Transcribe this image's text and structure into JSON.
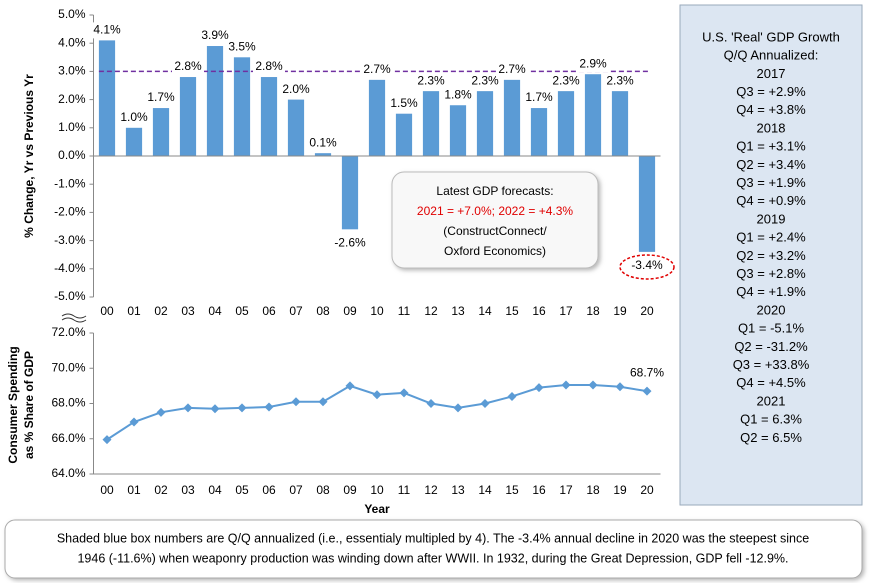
{
  "chart_data": [
    {
      "type": "bar",
      "y_label": "% Change, Yr vs Previous Yr",
      "categories": [
        "00",
        "01",
        "02",
        "03",
        "04",
        "05",
        "06",
        "07",
        "08",
        "09",
        "10",
        "11",
        "12",
        "13",
        "14",
        "15",
        "16",
        "17",
        "18",
        "19",
        "20"
      ],
      "values": [
        4.1,
        1.0,
        1.7,
        2.8,
        3.9,
        3.5,
        2.8,
        2.0,
        0.1,
        -2.6,
        2.7,
        1.5,
        2.3,
        1.8,
        2.3,
        2.7,
        1.7,
        2.3,
        2.9,
        2.3,
        -3.4
      ],
      "value_labels": [
        "4.1%",
        "1.0%",
        "1.7%",
        "2.8%",
        "3.9%",
        "3.5%",
        "2.8%",
        "2.0%",
        "0.1%",
        "-2.6%",
        "2.7%",
        "1.5%",
        "2.3%",
        "1.8%",
        "2.3%",
        "2.7%",
        "1.7%",
        "2.3%",
        "2.9%",
        "2.3%",
        "-3.4%"
      ],
      "color": "#5b9bd5",
      "reference_line": {
        "value": 3,
        "color": "#7030a0"
      },
      "ylim": [
        -5,
        5
      ],
      "yticks": [
        {
          "value": -5,
          "label": "-5.0%"
        },
        {
          "value": -4,
          "label": "-4.0%"
        },
        {
          "value": -3,
          "label": "-3.0%"
        },
        {
          "value": -2,
          "label": "-2.0%"
        },
        {
          "value": -1,
          "label": "-1.0%"
        },
        {
          "value": 0,
          "label": "0.0%"
        },
        {
          "value": 1,
          "label": "1.0%"
        },
        {
          "value": 2,
          "label": "2.0%"
        },
        {
          "value": 3,
          "label": "3.0%"
        },
        {
          "value": 4,
          "label": "4.0%"
        },
        {
          "value": 5,
          "label": "5.0%"
        }
      ],
      "annotation": [
        {
          "text": "Latest GDP forecasts:",
          "color": "#000000"
        },
        {
          "text": "2021 = +7.0%; 2022 = +4.3%",
          "color": "#e00000"
        },
        {
          "text": "(ConstructConnect/",
          "color": "#000000"
        },
        {
          "text": "Oxford Economics)",
          "color": "#000000"
        }
      ]
    },
    {
      "type": "line",
      "y_label": [
        "Consumer Spending",
        "as % Share of GDP"
      ],
      "x_label": "Year",
      "categories": [
        "00",
        "01",
        "02",
        "03",
        "04",
        "05",
        "06",
        "07",
        "08",
        "09",
        "10",
        "11",
        "12",
        "13",
        "14",
        "15",
        "16",
        "17",
        "18",
        "19",
        "20"
      ],
      "values": [
        65.95,
        66.95,
        67.5,
        67.75,
        67.7,
        67.75,
        67.8,
        68.1,
        68.1,
        69.0,
        68.5,
        68.6,
        68.0,
        67.75,
        68.0,
        68.4,
        68.9,
        69.05,
        69.05,
        68.95,
        68.7
      ],
      "value_labels": [
        null,
        null,
        null,
        null,
        null,
        null,
        null,
        null,
        null,
        null,
        null,
        null,
        null,
        null,
        null,
        null,
        null,
        null,
        null,
        null,
        "68.7%"
      ],
      "color": "#5b9bd5",
      "ylim": [
        64,
        72
      ],
      "yticks": [
        {
          "value": 64,
          "label": "64.0%"
        },
        {
          "value": 66,
          "label": "66.0%"
        },
        {
          "value": 68,
          "label": "68.0%"
        },
        {
          "value": 70,
          "label": "70.0%"
        },
        {
          "value": 72,
          "label": "72.0%"
        }
      ]
    }
  ],
  "sidebar": [
    "U.S. 'Real' GDP Growth",
    "Q/Q Annualized:",
    "2017",
    "Q3 = +2.9%",
    "Q4 = +3.8%",
    "2018",
    "Q1 = +3.1%",
    "Q2 = +3.4%",
    "Q3 = +1.9%",
    "Q4 = +0.9%",
    "2019",
    "Q1 = +2.4%",
    "Q2 = +3.2%",
    "Q3 = +2.8%",
    "Q4 = +1.9%",
    "2020",
    "Q1 = -5.1%",
    "Q2 = -31.2%",
    "Q3 = +33.8%",
    "Q4 = +4.5%",
    "2021",
    "Q1 = 6.3%",
    "Q2 = 6.5%"
  ],
  "caption": [
    "Shaded blue box numbers are Q/Q annualized (i.e., essentialy multipled by 4). The -3.4% annual decline in 2020 was the steepest since",
    "1946 (-11.6%) when weaponry production was winding down after WWII. In 1932, during the Great Depression, GDP fell -12.9%."
  ]
}
